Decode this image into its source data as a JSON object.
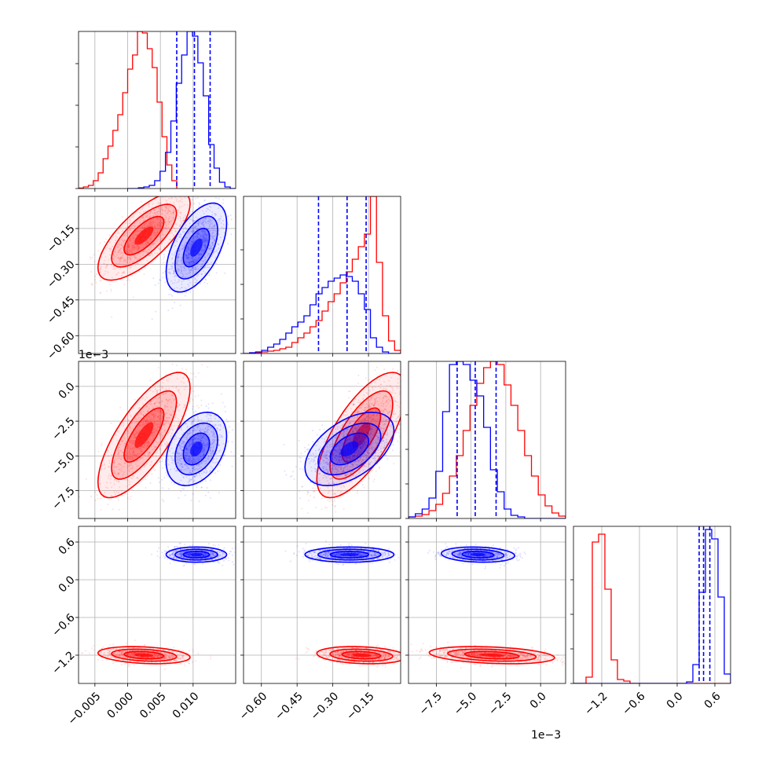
{
  "chart_data": {
    "type": "corner",
    "grid": true,
    "n_params": 4,
    "offset_labels": [
      "1e−3",
      "1e−3"
    ],
    "axes": [
      {
        "lim": [
          -0.0075,
          0.0165
        ],
        "ticks": [
          -0.005,
          0.0,
          0.005,
          0.01
        ],
        "tick_labels": [
          "−0.005",
          "0.000",
          "0.005",
          "0.010"
        ]
      },
      {
        "lim": [
          -0.675,
          -0.015
        ],
        "ticks": [
          -0.6,
          -0.45,
          -0.3,
          -0.15
        ],
        "tick_labels": [
          "−0.60",
          "−0.45",
          "−0.30",
          "−0.15"
        ]
      },
      {
        "lim": [
          -9.5,
          1.8
        ],
        "ticks": [
          -7.5,
          -5.0,
          -2.5,
          0.0
        ],
        "tick_labels": [
          "−7.5",
          "−5.0",
          "−2.5",
          "0.0"
        ]
      },
      {
        "lim": [
          -1.65,
          0.85
        ],
        "ticks": [
          -1.2,
          -0.6,
          0.0,
          0.6
        ],
        "tick_labels": [
          "−1.2",
          "−0.6",
          "0.0",
          "0.6"
        ]
      }
    ],
    "series": [
      {
        "color": "#ff0000",
        "mean": [
          0.0025,
          -0.18,
          -3.5,
          -1.2
        ],
        "std": [
          0.0032,
          0.085,
          2.05,
          0.062
        ],
        "corr": [
          [
            0,
            1,
            0.72
          ],
          [
            0,
            2,
            0.75
          ],
          [
            1,
            2,
            0.7
          ],
          [
            0,
            3,
            -0.25
          ],
          [
            1,
            3,
            -0.2
          ],
          [
            2,
            3,
            -0.3
          ]
        ],
        "hist": [
          {
            "edges": [
              -0.0075,
              0.0075
            ],
            "counts": [
              0.3,
              1,
              2,
              5,
              10,
              19,
              27,
              37,
              47,
              61,
              76,
              85,
              100,
              99,
              89,
              77,
              55,
              33,
              15,
              5
            ]
          },
          {
            "edges": [
              -0.675,
              -0.015
            ],
            "counts": [
              0,
              0,
              0.5,
              1,
              1.5,
              2,
              3,
              4,
              7,
              10,
              13,
              17,
              21,
              27,
              33,
              38,
              45,
              52,
              60,
              68,
              76,
              100,
              58,
              24,
              8,
              2
            ]
          },
          {
            "edges": [
              -9.5,
              1.8
            ],
            "counts": [
              1,
              1.5,
              2.5,
              5,
              9,
              16,
              27,
              40,
              56,
              72,
              86,
              96,
              100,
              98,
              85,
              72,
              56,
              40,
              27,
              15,
              8,
              3.5,
              1.5
            ]
          },
          {
            "edges": [
              -1.65,
              0.85
            ],
            "counts": [
              0,
              0,
              4,
              90,
              95,
              60,
              15,
              2.5,
              1.5,
              0,
              0,
              0,
              0,
              0,
              0,
              0,
              0,
              0,
              0,
              0,
              0,
              0,
              0,
              0,
              0
            ]
          }
        ]
      },
      {
        "color": "#0000ff",
        "mean": [
          0.0105,
          -0.23,
          -4.5,
          0.4
        ],
        "std": [
          0.0021,
          0.085,
          1.2,
          0.055
        ],
        "corr": [
          [
            0,
            1,
            0.55
          ],
          [
            0,
            2,
            0.35
          ],
          [
            1,
            2,
            0.5
          ],
          [
            0,
            3,
            0.0
          ],
          [
            1,
            3,
            0.0
          ],
          [
            2,
            3,
            -0.15
          ]
        ],
        "quantiles": [
          [
            0.0075,
            0.0102,
            0.0126
          ],
          [
            -0.36,
            -0.24,
            -0.16
          ],
          [
            -6.0,
            -4.7,
            -3.2
          ],
          [
            0.35,
            0.42,
            0.52
          ]
        ],
        "hist": [
          {
            "edges": [
              0.0,
              0.0165
            ],
            "counts": [
              0,
              0,
              0.5,
              1,
              2,
              5,
              11,
              23,
              43,
              67,
              85,
              100,
              97,
              80,
              59,
              28,
              13,
              4,
              1,
              0
            ]
          },
          {
            "edges": [
              -0.675,
              -0.015
            ],
            "counts": [
              0,
              0.5,
              1,
              2,
              4,
              6,
              9,
              13,
              17,
              20,
              24,
              31,
              38,
              42,
              46,
              48,
              50,
              49,
              46,
              38,
              28,
              10,
              4,
              1,
              0,
              0
            ]
          },
          {
            "edges": [
              -9.5,
              1.8
            ],
            "counts": [
              1,
              3,
              6,
              13,
              30,
              68,
              98,
              100,
              98,
              88,
              78,
              58,
              31,
              17,
              6,
              2,
              1,
              0,
              0,
              0,
              0,
              0,
              0
            ]
          },
          {
            "edges": [
              -1.65,
              0.85
            ],
            "counts": [
              0,
              0,
              0,
              0,
              0,
              0,
              0,
              0,
              0,
              0,
              0,
              0,
              0,
              0,
              0,
              0,
              0,
              0,
              1,
              12,
              58,
              98,
              92,
              55,
              6
            ]
          }
        ]
      }
    ]
  }
}
